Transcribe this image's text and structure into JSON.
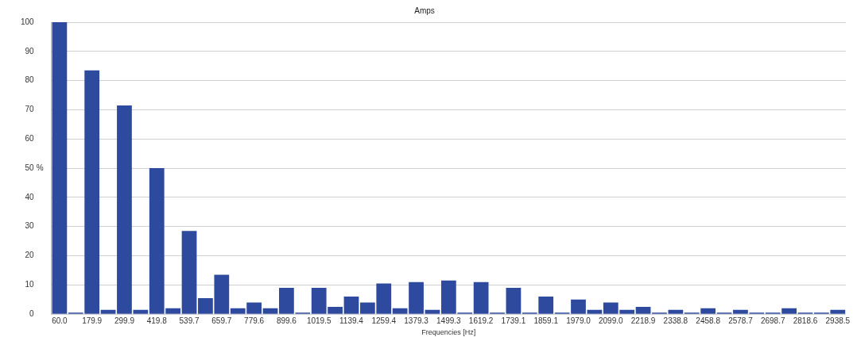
{
  "chart_data": {
    "type": "bar",
    "title": "Amps",
    "xlabel": "Frequencies [Hz]",
    "ylabel": "%",
    "categories": [
      "60.0",
      null,
      "179.9",
      null,
      "299.9",
      null,
      "419.8",
      null,
      "539.7",
      null,
      "659.7",
      null,
      "779.6",
      null,
      "899.6",
      null,
      "1019.5",
      null,
      "1139.4",
      null,
      "1259.4",
      null,
      "1379.3",
      null,
      "1499.3",
      null,
      "1619.2",
      null,
      "1739.1",
      null,
      "1859.1",
      null,
      "1979.0",
      null,
      "2099.0",
      null,
      "2218.9",
      null,
      "2338.8",
      null,
      "2458.8",
      null,
      "2578.7",
      null,
      "2698.7",
      null,
      "2818.6",
      null,
      "2938.5"
    ],
    "values": [
      100,
      0.5,
      83.5,
      1.5,
      71.5,
      1.5,
      50,
      2,
      28.5,
      5.5,
      13.5,
      2,
      4,
      2,
      9,
      0.5,
      9,
      2.5,
      6,
      4,
      10.5,
      2,
      11,
      1.5,
      11.5,
      0.5,
      11,
      0.5,
      9,
      0.5,
      6,
      0.5,
      5,
      1.5,
      4,
      1.5,
      2.5,
      0.5,
      1.5,
      0.5,
      2,
      0.5,
      1.5,
      0.5,
      0.5,
      2,
      0.5,
      0.5,
      1.5
    ],
    "color": "#2e4a9e",
    "ylim": [
      0,
      100
    ],
    "yticks": [
      0,
      10,
      20,
      30,
      40,
      50,
      60,
      70,
      80,
      90,
      100
    ],
    "grid": "y",
    "legend": false
  }
}
